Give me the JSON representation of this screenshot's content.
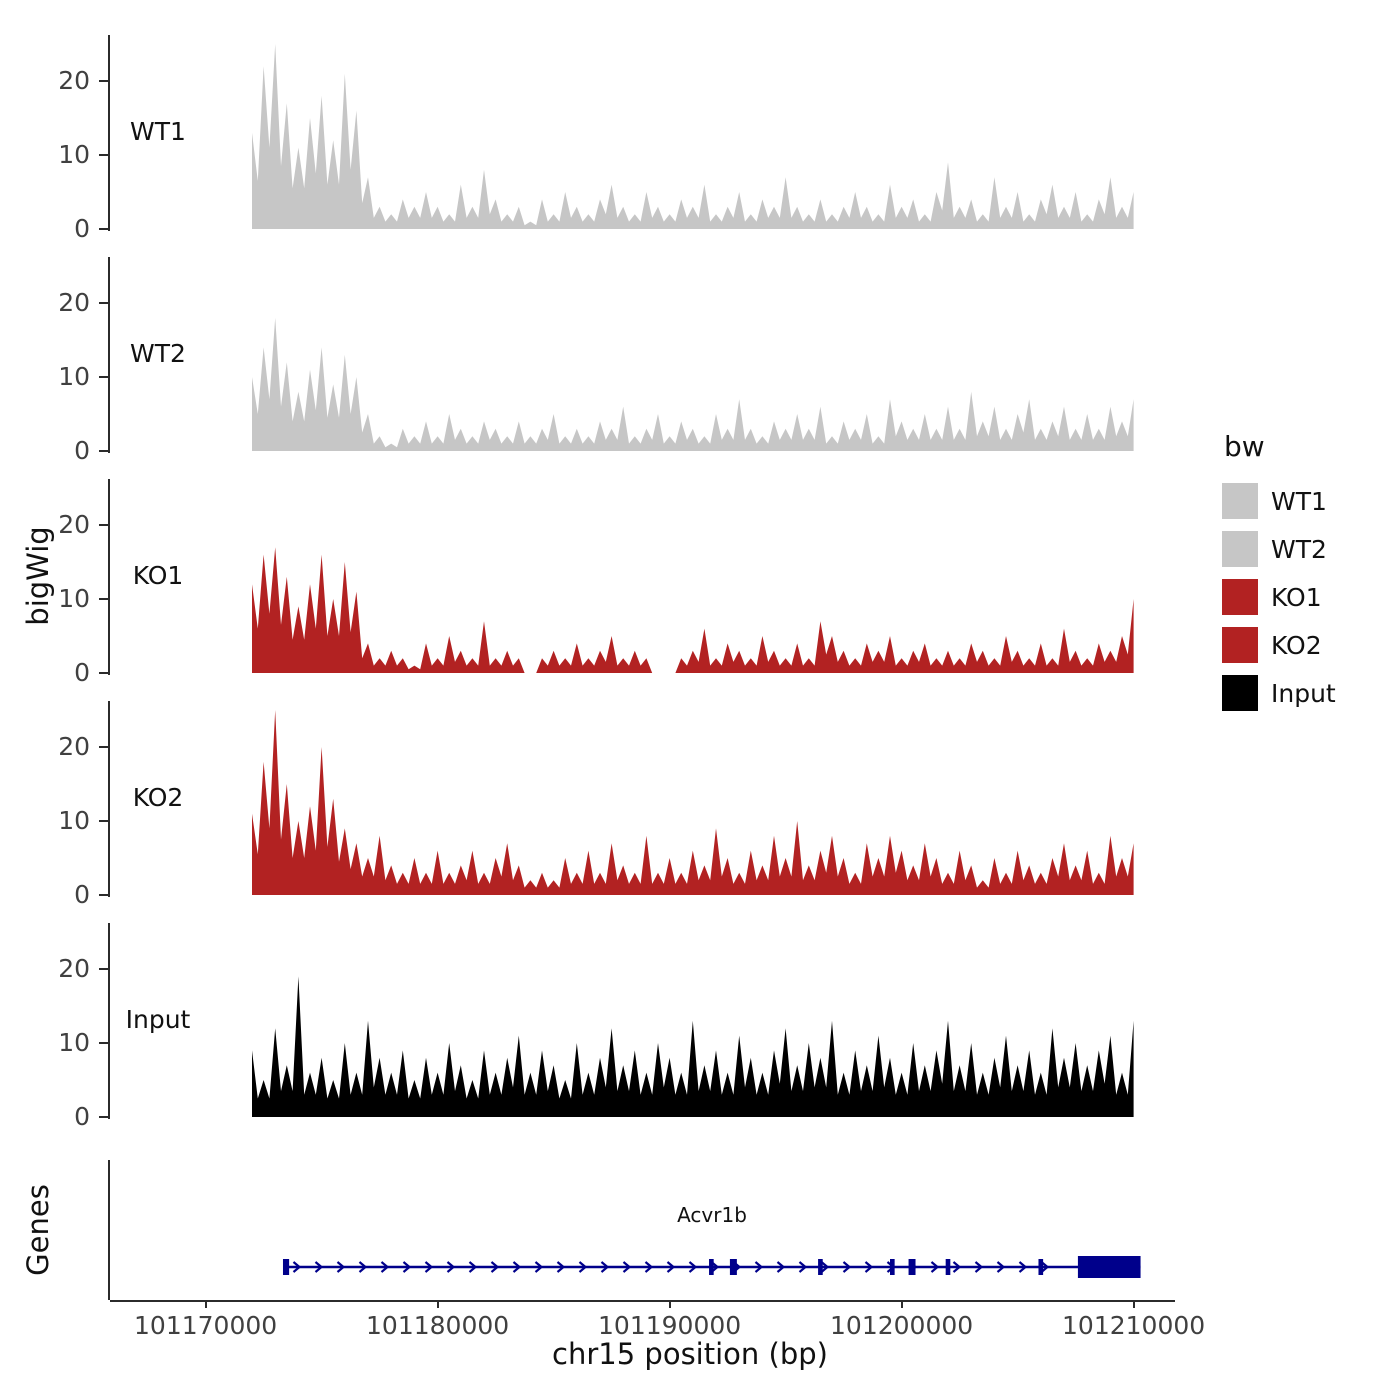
{
  "figure": {
    "y_axis_title": "bigWig",
    "genes_panel_title": "Genes",
    "x_axis_title": "chr15 position (bp)",
    "gene_label": "Acvr1b"
  },
  "legend": {
    "title": "bw",
    "entries": [
      {
        "label": "WT1",
        "color": "#c6c6c6"
      },
      {
        "label": "WT2",
        "color": "#c6c6c6"
      },
      {
        "label": "KO1",
        "color": "#b22222"
      },
      {
        "label": "KO2",
        "color": "#b22222"
      },
      {
        "label": "Input",
        "color": "#000000"
      }
    ]
  },
  "tracks": [
    {
      "label": "WT1",
      "color": "#c6c6c6"
    },
    {
      "label": "WT2",
      "color": "#c6c6c6"
    },
    {
      "label": "KO1",
      "color": "#b22222"
    },
    {
      "label": "KO2",
      "color": "#b22222"
    },
    {
      "label": "Input",
      "color": "#000000"
    }
  ],
  "chart_data": {
    "type": "area",
    "title": "",
    "description": "Stacked bigWig coverage tracks (ChIP-seq style) over chr15 with a gene model panel",
    "x_axis": {
      "title": "chr15 position (bp)",
      "tick_values": [
        101170000,
        101180000,
        101190000,
        101200000,
        101210000
      ],
      "tick_labels": [
        "101170000",
        "101180000",
        "101190000",
        "101200000",
        "101210000"
      ],
      "range": [
        101166000,
        101215000
      ]
    },
    "y_axis": {
      "title": "bigWig",
      "tick_values": [
        0,
        10,
        20
      ],
      "range_per_track": [
        0,
        26
      ]
    },
    "legend_title": "bw",
    "x_start": 101172000,
    "x_step": 500,
    "series": [
      {
        "name": "WT1",
        "color": "#c6c6c6",
        "values": [
          13,
          22,
          25,
          17,
          11,
          15,
          18,
          12,
          21,
          16,
          7,
          3,
          2,
          4,
          3,
          5,
          3,
          2,
          6,
          3,
          8,
          4,
          2,
          3,
          1,
          4,
          2,
          5,
          3,
          2,
          4,
          6,
          3,
          2,
          5,
          3,
          2,
          4,
          3,
          6,
          2,
          3,
          5,
          2,
          4,
          3,
          7,
          3,
          2,
          4,
          2,
          3,
          5,
          3,
          2,
          6,
          3,
          4,
          2,
          5,
          9,
          3,
          4,
          2,
          7,
          3,
          5,
          2,
          4,
          6,
          3,
          5,
          2,
          4,
          7,
          3,
          5
        ]
      },
      {
        "name": "WT2",
        "color": "#c6c6c6",
        "values": [
          10,
          14,
          18,
          12,
          8,
          11,
          14,
          9,
          13,
          10,
          5,
          2,
          1,
          3,
          2,
          4,
          2,
          5,
          3,
          2,
          4,
          3,
          2,
          4,
          2,
          3,
          5,
          2,
          3,
          2,
          4,
          3,
          6,
          2,
          3,
          5,
          2,
          4,
          3,
          2,
          5,
          3,
          7,
          3,
          2,
          4,
          3,
          5,
          3,
          6,
          2,
          4,
          3,
          5,
          2,
          7,
          4,
          3,
          5,
          3,
          6,
          3,
          8,
          4,
          6,
          3,
          5,
          7,
          3,
          4,
          6,
          3,
          5,
          3,
          6,
          4,
          7
        ]
      },
      {
        "name": "KO1",
        "color": "#b22222",
        "values": [
          12,
          16,
          17,
          13,
          9,
          12,
          16,
          10,
          15,
          11,
          4,
          2,
          3,
          2,
          1,
          4,
          2,
          5,
          3,
          2,
          7,
          2,
          3,
          2,
          0,
          2,
          3,
          2,
          4,
          2,
          3,
          5,
          2,
          3,
          2,
          0,
          0,
          2,
          3,
          6,
          2,
          4,
          3,
          2,
          5,
          3,
          2,
          4,
          2,
          7,
          5,
          3,
          2,
          4,
          3,
          5,
          2,
          3,
          4,
          2,
          3,
          2,
          4,
          3,
          2,
          5,
          3,
          2,
          4,
          2,
          6,
          3,
          2,
          4,
          3,
          5,
          10
        ]
      },
      {
        "name": "KO2",
        "color": "#b22222",
        "values": [
          11,
          18,
          25,
          15,
          10,
          12,
          20,
          13,
          9,
          7,
          5,
          8,
          4,
          3,
          5,
          3,
          6,
          3,
          4,
          6,
          3,
          5,
          7,
          4,
          2,
          3,
          2,
          5,
          3,
          6,
          3,
          7,
          4,
          3,
          8,
          3,
          5,
          3,
          6,
          4,
          9,
          5,
          3,
          6,
          4,
          8,
          5,
          10,
          4,
          6,
          8,
          5,
          3,
          7,
          5,
          8,
          6,
          4,
          7,
          5,
          3,
          6,
          4,
          2,
          5,
          3,
          6,
          4,
          3,
          5,
          7,
          4,
          6,
          3,
          8,
          5,
          7
        ]
      },
      {
        "name": "Input",
        "color": "#000000",
        "values": [
          9,
          5,
          12,
          7,
          19,
          6,
          8,
          5,
          10,
          6,
          13,
          8,
          6,
          9,
          5,
          8,
          6,
          10,
          7,
          5,
          9,
          6,
          8,
          11,
          6,
          9,
          7,
          5,
          10,
          6,
          8,
          12,
          7,
          9,
          6,
          10,
          8,
          6,
          13,
          7,
          9,
          6,
          11,
          8,
          6,
          9,
          12,
          7,
          10,
          8,
          13,
          6,
          9,
          7,
          11,
          8,
          6,
          10,
          7,
          9,
          13,
          7,
          10,
          6,
          8,
          11,
          7,
          9,
          6,
          12,
          8,
          10,
          7,
          9,
          11,
          6,
          13
        ]
      }
    ],
    "gene_track": {
      "panel_title": "Genes",
      "genes": [
        {
          "name": "Acvr1b",
          "strand": "+",
          "start": 101173400,
          "end": 101210300,
          "color": "#00008b",
          "exons": [
            [
              101173400,
              101173600
            ],
            [
              101191700,
              101191900
            ],
            [
              101192600,
              101192900
            ],
            [
              101196400,
              101196600
            ],
            [
              101199500,
              101199700
            ],
            [
              101200300,
              101200600
            ],
            [
              101201900,
              101202100
            ],
            [
              101205900,
              101206100
            ],
            [
              101207600,
              101210300
            ]
          ],
          "thick_exon": [
            101207600,
            101210300
          ]
        }
      ]
    }
  }
}
